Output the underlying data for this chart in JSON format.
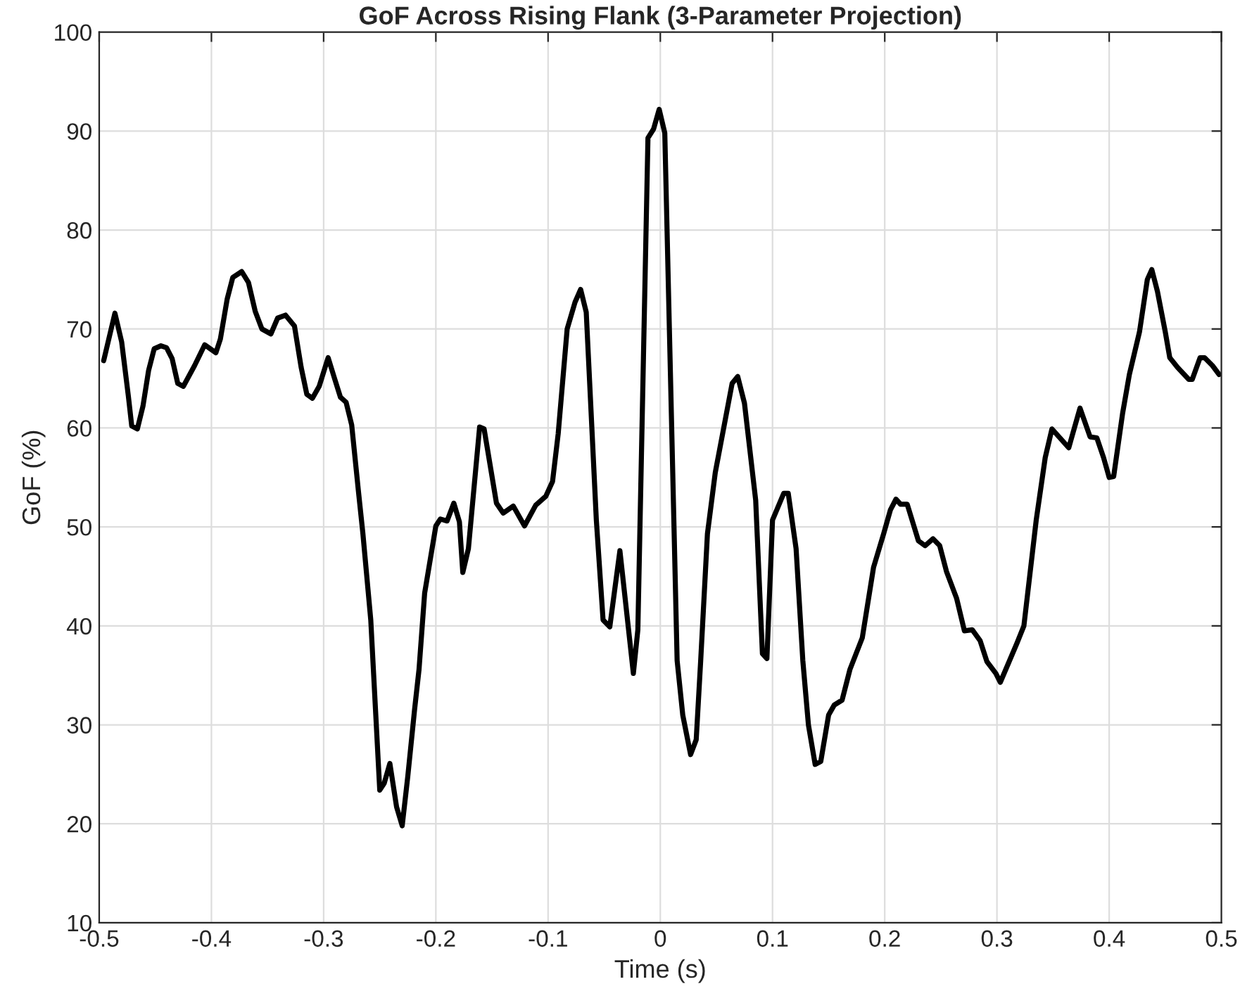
{
  "chart_data": {
    "type": "line",
    "title": "GoF Across Rising Flank (3-Parameter Projection)",
    "xlabel": "Time (s)",
    "ylabel": "GoF (%)",
    "xlim": [
      -0.5,
      0.5
    ],
    "xticks": [
      -0.5,
      -0.4,
      -0.3,
      -0.2,
      -0.1,
      0,
      0.1,
      0.2,
      0.3,
      0.4,
      0.5
    ],
    "ylim": [
      10,
      100
    ],
    "yticks": [
      10,
      20,
      30,
      40,
      50,
      60,
      70,
      80,
      90,
      100
    ],
    "grid": true,
    "legend": false,
    "marker": "none",
    "line_style": "solid",
    "series": [
      {
        "color": "#000000",
        "x": [
          -0.496,
          -0.486,
          -0.48,
          -0.474,
          -0.471,
          -0.466,
          -0.461,
          -0.456,
          -0.451,
          -0.445,
          -0.44,
          -0.435,
          -0.43,
          -0.425,
          -0.415,
          -0.406,
          -0.396,
          -0.392,
          -0.386,
          -0.381,
          -0.373,
          -0.367,
          -0.361,
          -0.355,
          -0.347,
          -0.341,
          -0.334,
          -0.326,
          -0.32,
          -0.315,
          -0.31,
          -0.304,
          -0.296,
          -0.29,
          -0.285,
          -0.28,
          -0.275,
          -0.269,
          -0.265,
          -0.258,
          -0.25,
          -0.246,
          -0.241,
          -0.235,
          -0.23,
          -0.225,
          -0.219,
          -0.215,
          -0.21,
          -0.2,
          -0.196,
          -0.19,
          -0.184,
          -0.179,
          -0.176,
          -0.171,
          -0.161,
          -0.157,
          -0.146,
          -0.14,
          -0.131,
          -0.121,
          -0.111,
          -0.102,
          -0.096,
          -0.091,
          -0.083,
          -0.076,
          -0.071,
          -0.066,
          -0.057,
          -0.051,
          -0.045,
          -0.036,
          -0.024,
          -0.02,
          -0.011,
          -0.006,
          -0.001,
          0.004,
          0.015,
          0.02,
          0.027,
          0.032,
          0.036,
          0.042,
          0.049,
          0.064,
          0.069,
          0.075,
          0.085,
          0.091,
          0.095,
          0.1,
          0.11,
          0.114,
          0.121,
          0.127,
          0.132,
          0.138,
          0.143,
          0.15,
          0.155,
          0.162,
          0.169,
          0.18,
          0.19,
          0.199,
          0.205,
          0.21,
          0.214,
          0.22,
          0.23,
          0.236,
          0.243,
          0.249,
          0.255,
          0.264,
          0.271,
          0.278,
          0.285,
          0.291,
          0.299,
          0.303,
          0.318,
          0.324,
          0.335,
          0.343,
          0.349,
          0.364,
          0.374,
          0.383,
          0.389,
          0.395,
          0.4,
          0.404,
          0.412,
          0.418,
          0.427,
          0.434,
          0.438,
          0.443,
          0.45,
          0.454,
          0.461,
          0.471,
          0.474,
          0.481,
          0.485,
          0.492,
          0.498
        ],
        "values": [
          66.8,
          71.6,
          68.7,
          63.2,
          60.2,
          59.9,
          62.2,
          65.8,
          68.0,
          68.3,
          68.1,
          67.0,
          64.5,
          64.2,
          66.3,
          68.4,
          67.6,
          69.0,
          73.0,
          75.2,
          75.8,
          74.7,
          71.8,
          70.0,
          69.5,
          71.1,
          71.4,
          70.3,
          66.1,
          63.4,
          63.0,
          64.2,
          67.1,
          64.9,
          63.1,
          62.6,
          60.3,
          53.6,
          49.3,
          40.6,
          23.4,
          24.1,
          26.1,
          21.7,
          19.8,
          24.8,
          31.5,
          35.6,
          43.3,
          50.1,
          50.8,
          50.6,
          52.4,
          50.5,
          45.4,
          47.8,
          60.1,
          59.9,
          52.4,
          51.4,
          52.1,
          50.1,
          52.2,
          53.1,
          54.6,
          59.4,
          70.0,
          72.7,
          74.0,
          71.7,
          50.7,
          40.6,
          39.9,
          47.6,
          35.2,
          39.6,
          89.3,
          90.2,
          92.2,
          89.8,
          36.5,
          31.0,
          27.0,
          28.5,
          36.5,
          49.3,
          55.5,
          64.5,
          65.2,
          62.5,
          52.7,
          37.2,
          36.7,
          50.7,
          53.4,
          53.4,
          47.8,
          36.5,
          30.0,
          26.0,
          26.3,
          31.0,
          32.0,
          32.5,
          35.6,
          38.8,
          45.9,
          49.3,
          51.7,
          52.8,
          52.3,
          52.3,
          48.6,
          48.1,
          48.8,
          48.1,
          45.5,
          42.8,
          39.5,
          39.6,
          38.5,
          36.4,
          35.2,
          34.3,
          38.3,
          40.0,
          50.7,
          57.0,
          59.9,
          58.0,
          62.0,
          59.1,
          59.0,
          57.0,
          55.0,
          55.1,
          61.5,
          65.4,
          69.7,
          75.0,
          76.0,
          73.8,
          69.7,
          67.1,
          66.1,
          64.9,
          64.9,
          67.1,
          67.1,
          66.3,
          65.4
        ]
      }
    ]
  }
}
